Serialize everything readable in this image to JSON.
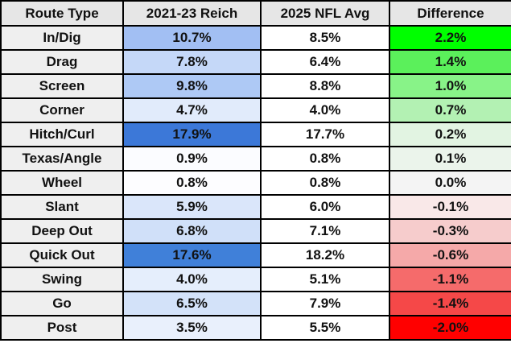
{
  "table": {
    "headers": [
      "Route Type",
      "2021-23 Reich",
      "2025 NFL Avg",
      "Difference"
    ],
    "rows": [
      [
        "In/Dig",
        "10.7%",
        "8.5%",
        "2.2%"
      ],
      [
        "Drag",
        "7.8%",
        "6.4%",
        "1.4%"
      ],
      [
        "Screen",
        "9.8%",
        "8.8%",
        "1.0%"
      ],
      [
        "Corner",
        "4.7%",
        "4.0%",
        "0.7%"
      ],
      [
        "Hitch/Curl",
        "17.9%",
        "17.7%",
        "0.2%"
      ],
      [
        "Texas/Angle",
        "0.9%",
        "0.8%",
        "0.1%"
      ],
      [
        "Wheel",
        "0.8%",
        "0.8%",
        "0.0%"
      ],
      [
        "Slant",
        "5.9%",
        "6.0%",
        "-0.1%"
      ],
      [
        "Deep Out",
        "6.8%",
        "7.1%",
        "-0.3%"
      ],
      [
        "Quick Out",
        "17.6%",
        "18.2%",
        "-0.6%"
      ],
      [
        "Swing",
        "4.0%",
        "5.1%",
        "-1.1%"
      ],
      [
        "Go",
        "6.5%",
        "7.9%",
        "-1.4%"
      ],
      [
        "Post",
        "3.5%",
        "5.5%",
        "-2.0%"
      ]
    ],
    "reich_colors": [
      "#a2bff3",
      "#c5d8f8",
      "#aec9f5",
      "#e1ebfb",
      "#3c78d8",
      "#fbfcff",
      "#fdfdff",
      "#dae6fa",
      "#d0e0f9",
      "#4080d9",
      "#e5eefc",
      "#d3e2f9",
      "#e9f0fc"
    ],
    "difference_colors": [
      "#00ff00",
      "#5bf05b",
      "#88f388",
      "#b3f1b3",
      "#e2f4e2",
      "#ebf4eb",
      "#f4f4f4",
      "#f9e8e8",
      "#f6cccc",
      "#f5a9a9",
      "#f56b6b",
      "#f54848",
      "#ff0000"
    ]
  }
}
